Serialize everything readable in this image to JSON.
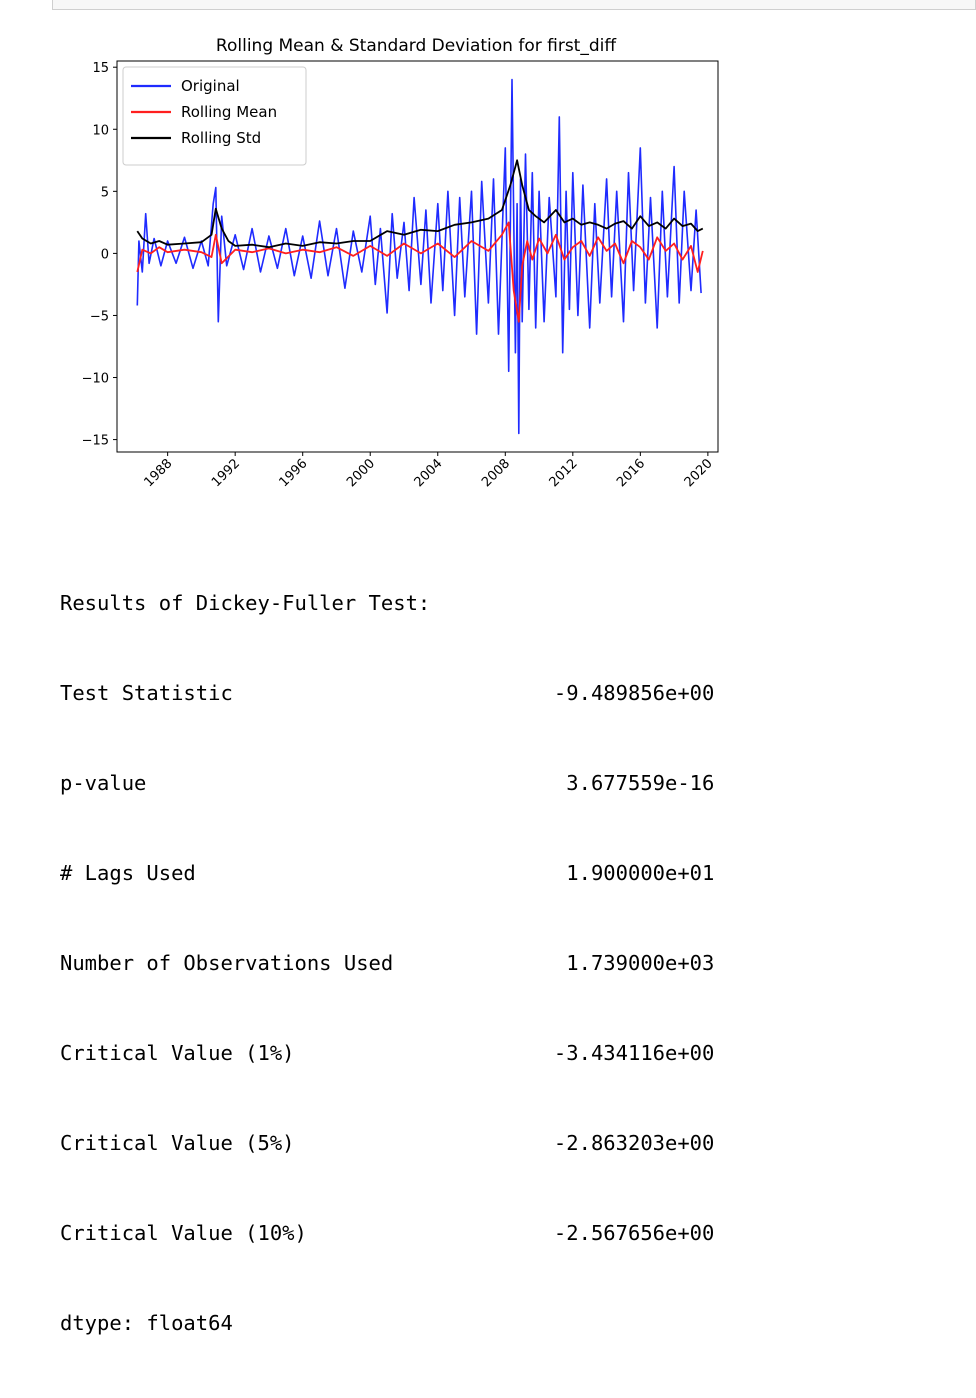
{
  "chart_data": {
    "type": "line",
    "title": "Rolling Mean & Standard Deviation for first_diff",
    "xlabel": "",
    "ylabel": "",
    "xlim": [
      1985.0,
      2020.6
    ],
    "ylim": [
      -16.0,
      15.5
    ],
    "yticks": [
      -15,
      -10,
      -5,
      0,
      5,
      10,
      15
    ],
    "ytick_labels": [
      "−15",
      "−10",
      "−5",
      "0",
      "5",
      "10",
      "15"
    ],
    "xticks": [
      1988,
      1992,
      1996,
      2000,
      2004,
      2008,
      2012,
      2016,
      2020
    ],
    "xtick_labels": [
      "1988",
      "1992",
      "1996",
      "2000",
      "2004",
      "2008",
      "2012",
      "2016",
      "2020"
    ],
    "grid": false,
    "legend_position": "upper-left",
    "series": [
      {
        "name": "Original",
        "color": "#1f2bff",
        "x": [
          1986.2,
          1986.3,
          1986.5,
          1986.7,
          1986.9,
          1987.2,
          1987.6,
          1988.0,
          1988.5,
          1989.0,
          1989.5,
          1990.0,
          1990.4,
          1990.7,
          1990.85,
          1991.0,
          1991.2,
          1991.5,
          1992.0,
          1992.5,
          1993.0,
          1993.5,
          1994.0,
          1994.5,
          1995.0,
          1995.5,
          1996.0,
          1996.5,
          1997.0,
          1997.5,
          1998.0,
          1998.5,
          1999.0,
          1999.5,
          2000.0,
          2000.3,
          2000.6,
          2001.0,
          2001.3,
          2001.6,
          2002.0,
          2002.3,
          2002.6,
          2003.0,
          2003.3,
          2003.6,
          2004.0,
          2004.3,
          2004.6,
          2005.0,
          2005.3,
          2005.6,
          2006.0,
          2006.3,
          2006.6,
          2007.0,
          2007.3,
          2007.6,
          2008.0,
          2008.2,
          2008.4,
          2008.6,
          2008.7,
          2008.8,
          2008.9,
          2009.0,
          2009.2,
          2009.4,
          2009.6,
          2009.8,
          2010.0,
          2010.3,
          2010.6,
          2011.0,
          2011.2,
          2011.4,
          2011.6,
          2011.8,
          2012.0,
          2012.3,
          2012.6,
          2013.0,
          2013.3,
          2013.6,
          2014.0,
          2014.3,
          2014.6,
          2015.0,
          2015.3,
          2015.6,
          2016.0,
          2016.3,
          2016.6,
          2017.0,
          2017.3,
          2017.6,
          2018.0,
          2018.3,
          2018.6,
          2019.0,
          2019.3,
          2019.6
        ],
        "values": [
          -4.2,
          1.0,
          -1.5,
          3.2,
          -0.8,
          1.2,
          -1.0,
          1.0,
          -0.8,
          1.3,
          -1.2,
          1.0,
          -1.0,
          4.0,
          5.3,
          -5.5,
          3.0,
          -1.0,
          1.5,
          -1.3,
          2.0,
          -1.5,
          1.4,
          -1.2,
          2.0,
          -1.8,
          1.4,
          -2.0,
          2.6,
          -1.8,
          2.0,
          -2.8,
          1.8,
          -1.5,
          3.0,
          -2.5,
          2.0,
          -4.8,
          3.2,
          -2.0,
          2.5,
          -3.0,
          4.5,
          -2.5,
          3.5,
          -4.0,
          4.0,
          -3.0,
          5.0,
          -5.0,
          4.5,
          -3.5,
          5.0,
          -6.5,
          5.8,
          -4.0,
          6.0,
          -6.5,
          8.5,
          -9.5,
          14.0,
          -8.0,
          4.0,
          -14.5,
          6.0,
          -5.5,
          8.0,
          -4.5,
          6.5,
          -6.0,
          5.0,
          -5.5,
          4.5,
          -3.5,
          11.0,
          -8.0,
          5.0,
          -4.5,
          6.5,
          -5.0,
          5.5,
          -6.0,
          4.0,
          -4.0,
          6.0,
          -3.5,
          5.0,
          -5.5,
          6.5,
          -3.0,
          8.5,
          -4.0,
          4.5,
          -6.0,
          5.0,
          -3.5,
          7.0,
          -4.0,
          5.0,
          -3.0,
          3.5,
          -3.2
        ]
      },
      {
        "name": "Rolling Mean",
        "color": "#ff1f1f",
        "x": [
          1986.2,
          1986.5,
          1987.0,
          1987.5,
          1988.0,
          1989.0,
          1990.0,
          1990.6,
          1990.85,
          1991.2,
          1992.0,
          1993.0,
          1994.0,
          1995.0,
          1996.0,
          1997.0,
          1998.0,
          1999.0,
          2000.0,
          2001.0,
          2002.0,
          2003.0,
          2004.0,
          2005.0,
          2006.0,
          2007.0,
          2007.8,
          2008.2,
          2008.5,
          2008.8,
          2009.0,
          2009.3,
          2009.6,
          2010.0,
          2010.5,
          2011.0,
          2011.5,
          2012.0,
          2012.5,
          2013.0,
          2013.5,
          2014.0,
          2014.5,
          2015.0,
          2015.5,
          2016.0,
          2016.5,
          2017.0,
          2017.5,
          2018.0,
          2018.5,
          2019.0,
          2019.4,
          2019.7
        ],
        "values": [
          -1.5,
          0.3,
          0.0,
          0.5,
          0.1,
          0.3,
          0.1,
          -0.3,
          1.5,
          -0.8,
          0.3,
          0.1,
          0.4,
          0.0,
          0.3,
          0.1,
          0.5,
          -0.2,
          0.6,
          -0.2,
          0.8,
          0.0,
          0.8,
          -0.3,
          1.0,
          0.2,
          1.5,
          2.5,
          -3.0,
          -5.5,
          -1.0,
          1.0,
          -0.5,
          1.2,
          0.0,
          1.5,
          -0.5,
          0.5,
          1.0,
          -0.2,
          1.3,
          0.2,
          0.8,
          -0.8,
          1.0,
          0.5,
          -0.5,
          1.3,
          0.2,
          0.8,
          -0.5,
          0.6,
          -1.5,
          0.2
        ]
      },
      {
        "name": "Rolling Std",
        "color": "#000000",
        "x": [
          1986.2,
          1986.5,
          1987.0,
          1987.5,
          1988.0,
          1989.0,
          1990.0,
          1990.6,
          1990.85,
          1991.2,
          1991.6,
          1992.0,
          1993.0,
          1994.0,
          1995.0,
          1996.0,
          1997.0,
          1998.0,
          1999.0,
          2000.0,
          2001.0,
          2002.0,
          2003.0,
          2004.0,
          2005.0,
          2006.0,
          2007.0,
          2007.8,
          2008.3,
          2008.7,
          2009.0,
          2009.4,
          2009.8,
          2010.3,
          2011.0,
          2011.5,
          2012.0,
          2012.5,
          2013.0,
          2013.5,
          2014.0,
          2014.5,
          2015.0,
          2015.5,
          2016.0,
          2016.5,
          2017.0,
          2017.5,
          2018.0,
          2018.5,
          2019.0,
          2019.4,
          2019.7
        ],
        "values": [
          1.8,
          1.2,
          0.8,
          1.0,
          0.7,
          0.8,
          0.9,
          1.5,
          3.6,
          2.0,
          1.0,
          0.6,
          0.7,
          0.5,
          0.8,
          0.6,
          0.9,
          0.8,
          1.0,
          1.0,
          1.8,
          1.5,
          1.9,
          1.8,
          2.3,
          2.5,
          2.8,
          3.5,
          5.5,
          7.5,
          5.5,
          3.5,
          3.0,
          2.5,
          3.5,
          2.5,
          2.8,
          2.3,
          2.5,
          2.3,
          2.0,
          2.4,
          2.6,
          2.0,
          3.0,
          2.2,
          2.5,
          2.0,
          2.8,
          2.2,
          2.4,
          1.8,
          2.0
        ]
      }
    ]
  },
  "output_text": {
    "header": "Results of Dickey-Fuller Test:",
    "rows": [
      {
        "label": "Test Statistic",
        "value": "-9.489856e+00"
      },
      {
        "label": "p-value",
        "value": "3.677559e-16"
      },
      {
        "label": "# Lags Used",
        "value": "1.900000e+01"
      },
      {
        "label": "Number of Observations Used",
        "value": "1.739000e+03"
      },
      {
        "label": "Critical Value (1%)",
        "value": "-3.434116e+00"
      },
      {
        "label": "Critical Value (5%)",
        "value": "-2.863203e+00"
      },
      {
        "label": "Critical Value (10%)",
        "value": "-2.567656e+00"
      }
    ],
    "dtype": "dtype: float64"
  }
}
